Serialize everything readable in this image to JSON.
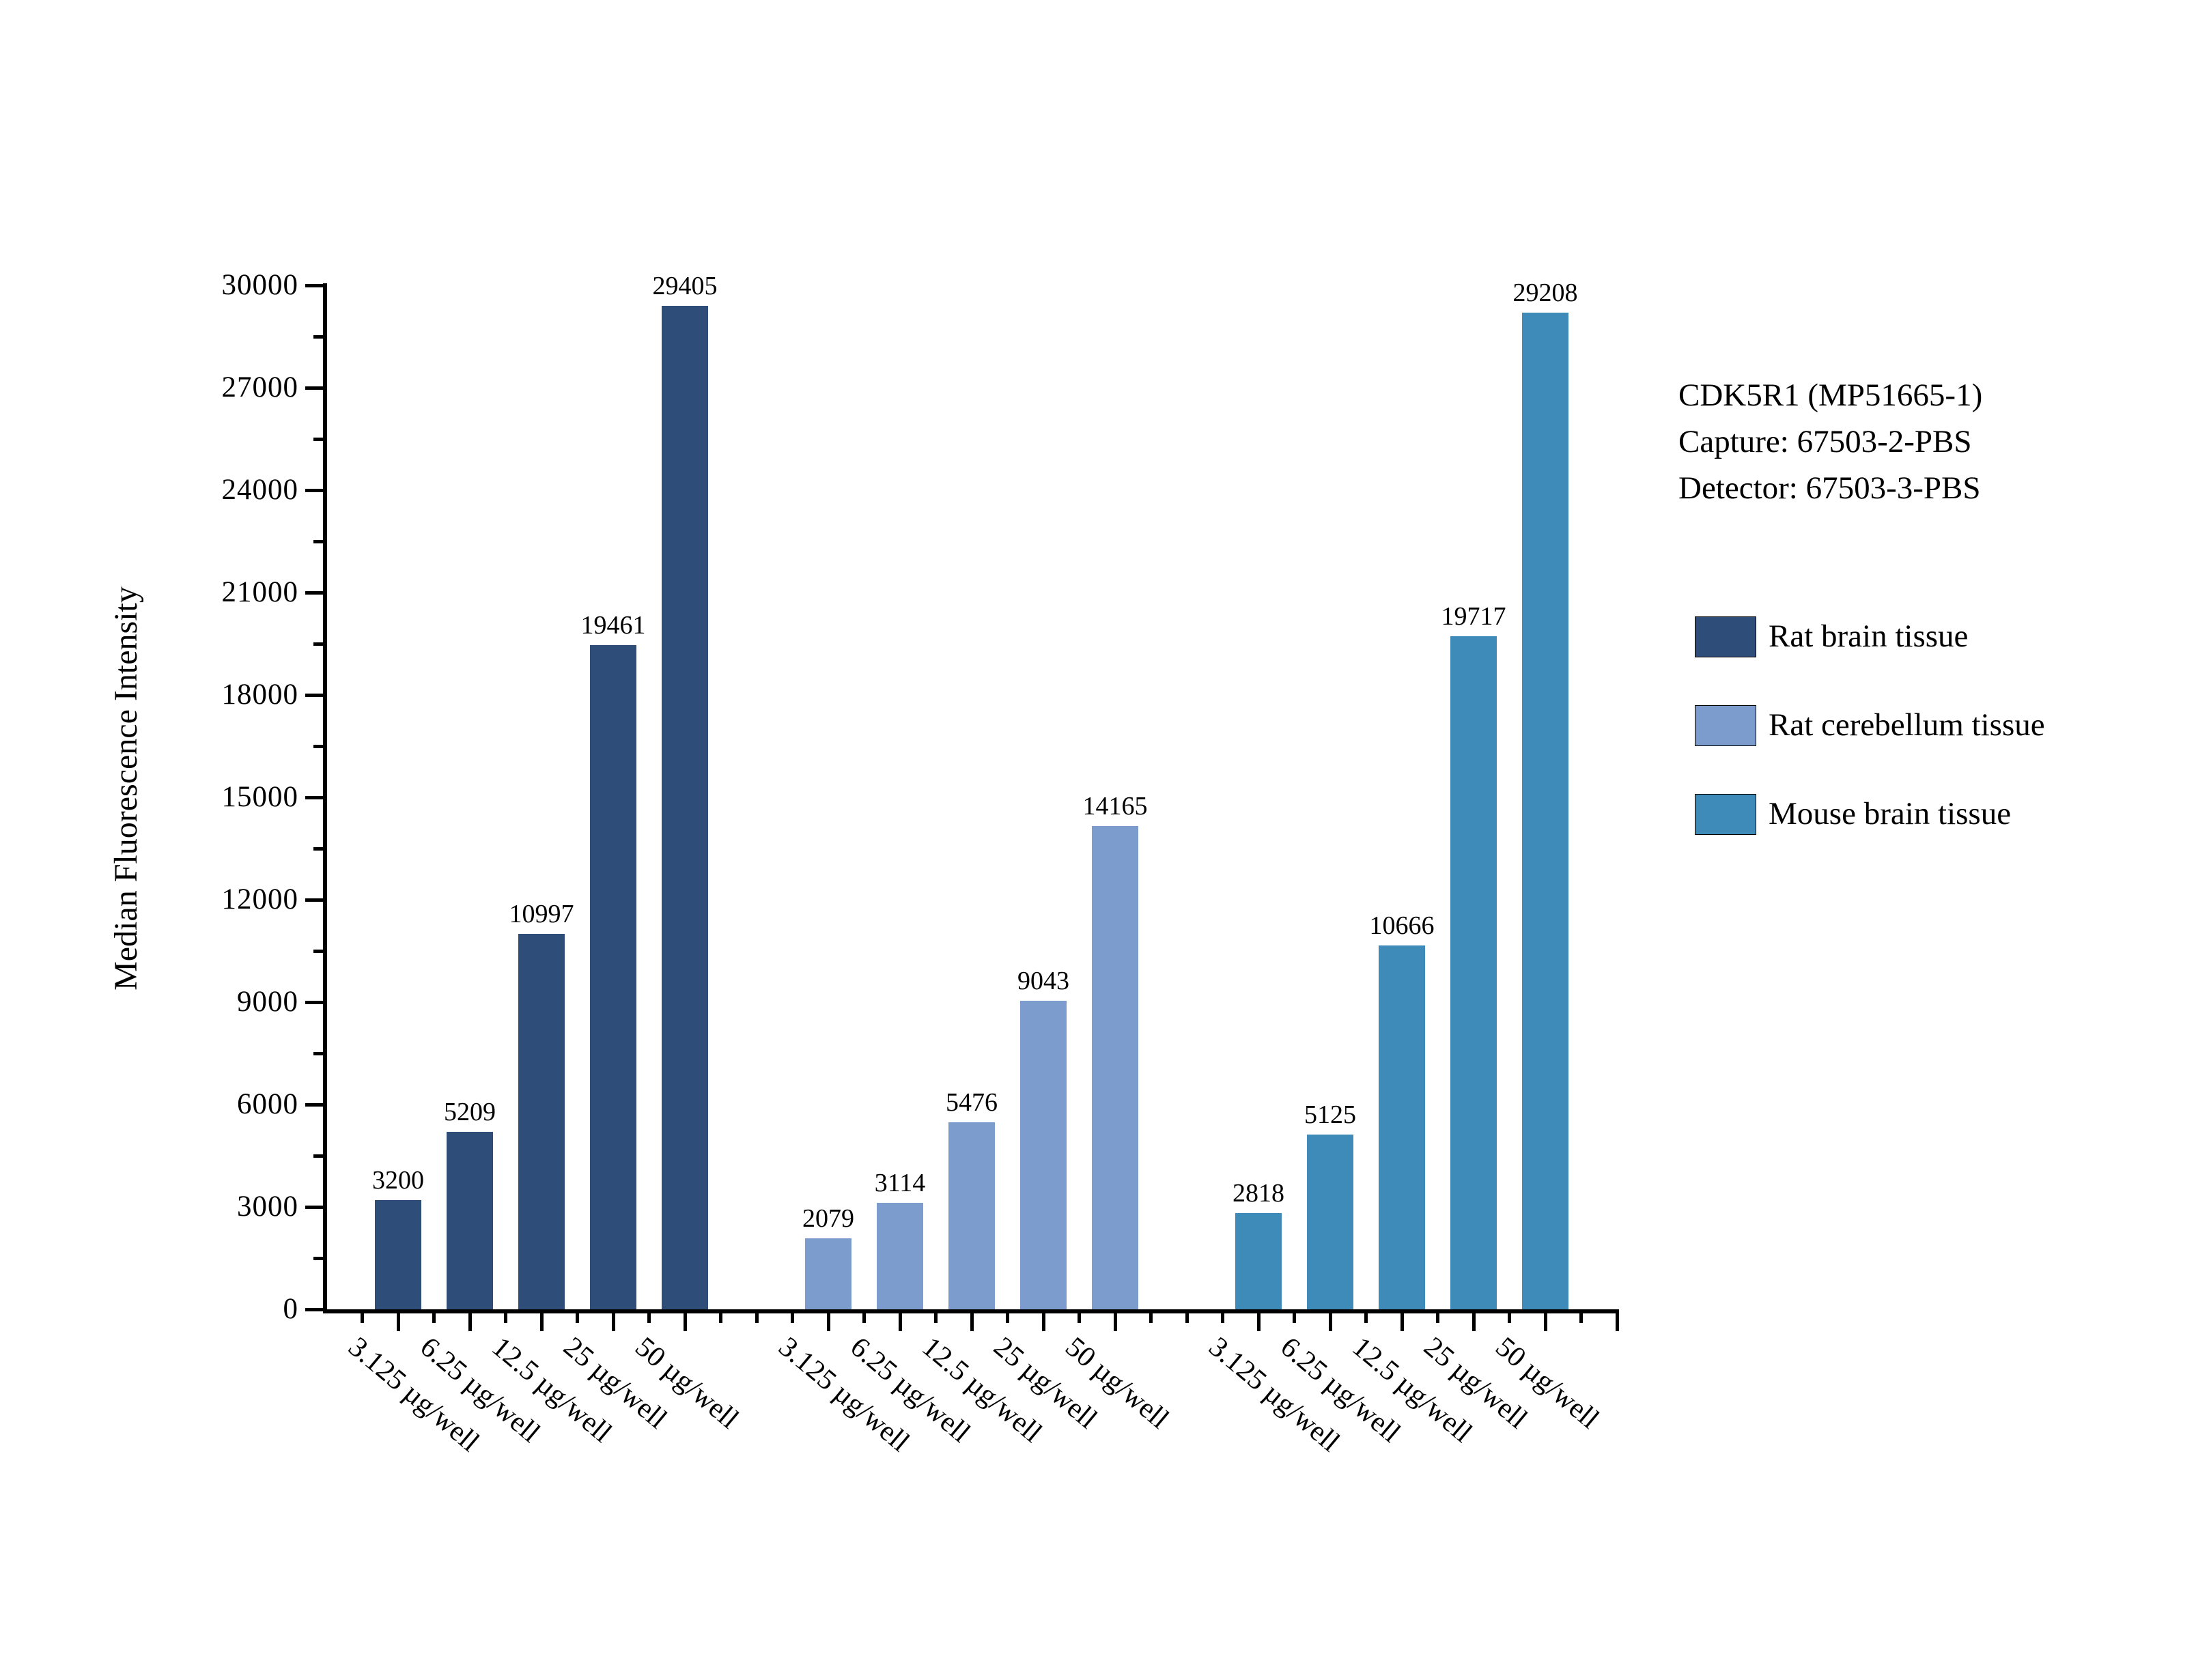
{
  "chart_data": {
    "type": "bar",
    "title": "",
    "ylabel": "Median Fluorescence Intensity",
    "xlabel": "",
    "ylim": [
      0,
      30000
    ],
    "ytick_major_step": 3000,
    "ytick_minor_step": 1500,
    "grid": false,
    "legend_position": "right",
    "bar_value_labels": true,
    "categories": [
      "3.125 µg/well",
      "6.25 µg/well",
      "12.5 µg/well",
      "25 µg/well",
      "50 µg/well"
    ],
    "series": [
      {
        "name": "Rat brain tissue",
        "color": "#2E4D78",
        "values": [
          3200,
          5209,
          10997,
          19461,
          29405
        ]
      },
      {
        "name": "Rat cerebellum tissue",
        "color": "#7C9CCE",
        "values": [
          2079,
          3114,
          5476,
          9043,
          14165
        ]
      },
      {
        "name": "Mouse brain tissue",
        "color": "#3E8BBA",
        "values": [
          2818,
          5125,
          10666,
          19717,
          29208
        ]
      }
    ],
    "annotations": [
      "CDK5R1 (MP51665-1)",
      "Capture: 67503-2-PBS",
      "Detector: 67503-3-PBS"
    ]
  }
}
